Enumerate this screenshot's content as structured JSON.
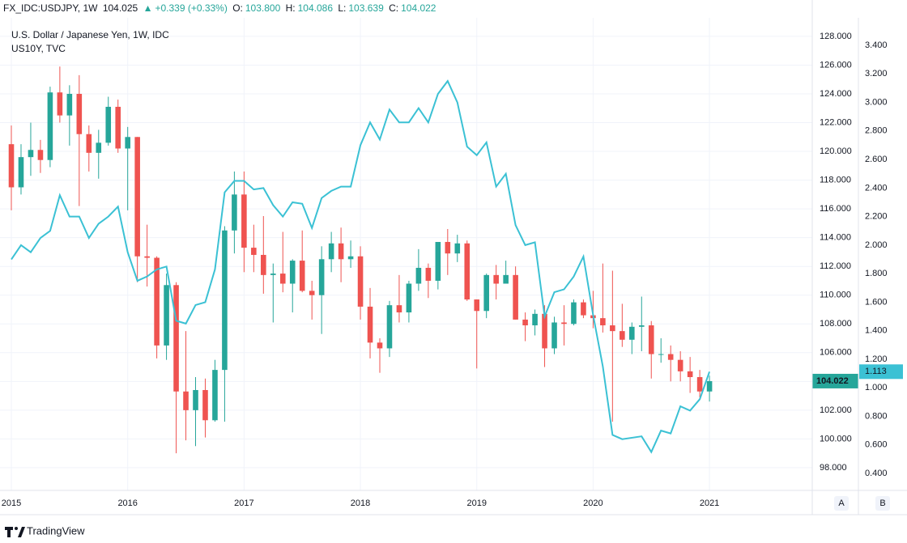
{
  "header": {
    "symbol": "FX_IDC:USDJPY, 1W",
    "last": "104.025",
    "change": "+0.339 (+0.33%)",
    "open_label": "O:",
    "open": "103.800",
    "high_label": "H:",
    "high": "104.086",
    "low_label": "L:",
    "low": "103.639",
    "close_label": "C:",
    "close": "104.022"
  },
  "chart_data": {
    "type": "candlestick",
    "x": [
      0,
      1,
      2,
      3,
      4,
      5,
      6,
      7,
      8,
      9,
      10,
      11,
      12,
      13,
      14,
      15,
      16,
      17,
      18,
      19,
      20,
      21,
      22,
      23,
      24,
      25,
      26,
      27,
      28,
      29,
      30,
      31,
      32,
      33,
      34,
      35,
      36,
      37,
      38,
      39,
      40,
      41,
      42,
      43,
      44,
      45,
      46,
      47,
      48,
      49,
      50,
      51,
      52,
      53,
      54,
      55,
      56,
      57,
      58,
      59,
      60,
      61,
      62,
      63,
      64,
      65,
      66,
      67,
      68,
      69,
      70,
      71,
      72
    ],
    "series": [
      {
        "name": "U.S. Dollar / Japanese Yen, 1W, IDC",
        "up_color": "#26a69a",
        "down_color": "#ef5350",
        "open": [
          120.5,
          117.5,
          119.6,
          120.1,
          119.4,
          124.1,
          122.5,
          124.0,
          121.2,
          119.9,
          120.6,
          123.1,
          120.2,
          121.0,
          112.7,
          112.6,
          106.5,
          110.7,
          103.3,
          102.0,
          103.4,
          101.3,
          104.8,
          114.5,
          117.0,
          113.3,
          112.8,
          111.4,
          111.5,
          110.8,
          112.4,
          110.3,
          110.0,
          112.5,
          113.6,
          112.5,
          112.7,
          109.2,
          106.7,
          106.3,
          109.3,
          108.8,
          110.8,
          111.9,
          111.0,
          113.7,
          112.9,
          113.6,
          109.7,
          108.9,
          111.4,
          110.8,
          111.4,
          108.3,
          107.9,
          108.7,
          106.3,
          108.1,
          108.0,
          109.5,
          108.6,
          108.4,
          107.9,
          107.5,
          106.9,
          107.8,
          107.9,
          105.9,
          105.9,
          105.5,
          104.7,
          104.3,
          103.3
        ],
        "high": [
          121.8,
          120.5,
          122.0,
          120.8,
          124.5,
          125.9,
          124.6,
          125.3,
          121.8,
          121.5,
          123.8,
          123.6,
          121.7,
          121.0,
          114.9,
          112.7,
          111.5,
          110.9,
          107.5,
          104.3,
          104.2,
          105.5,
          114.8,
          118.6,
          118.6,
          114.9,
          115.5,
          112.2,
          114.4,
          112.5,
          114.5,
          111.0,
          113.4,
          114.4,
          114.7,
          113.8,
          113.4,
          110.5,
          107.0,
          109.6,
          111.4,
          111.0,
          113.2,
          112.2,
          113.7,
          114.6,
          114.2,
          113.8,
          109.7,
          111.5,
          112.1,
          112.4,
          112.0,
          108.8,
          109.0,
          109.3,
          108.5,
          109.3,
          109.7,
          109.7,
          110.3,
          112.2,
          111.7,
          109.4,
          108.1,
          109.9,
          108.2,
          107.0,
          106.5,
          106.1,
          105.7,
          104.8,
          104.4
        ],
        "low": [
          115.9,
          117.0,
          118.3,
          118.5,
          118.9,
          122.0,
          120.4,
          116.2,
          118.6,
          118.1,
          120.4,
          119.9,
          115.9,
          110.9,
          110.6,
          105.6,
          105.5,
          99.0,
          99.9,
          99.5,
          100.1,
          101.2,
          101.2,
          112.9,
          111.6,
          111.6,
          110.1,
          108.1,
          110.2,
          108.8,
          110.2,
          108.3,
          107.3,
          111.6,
          110.9,
          111.9,
          108.3,
          105.6,
          104.6,
          105.7,
          108.1,
          108.1,
          110.3,
          109.8,
          110.4,
          111.4,
          112.3,
          109.6,
          104.9,
          108.4,
          109.7,
          110.8,
          108.3,
          106.8,
          107.2,
          105.0,
          105.9,
          106.5,
          107.9,
          108.4,
          107.7,
          107.4,
          101.2,
          106.4,
          105.9,
          106.1,
          104.2,
          105.3,
          104.0,
          104.0,
          103.2,
          102.9,
          102.6
        ],
        "close": [
          117.5,
          119.6,
          120.1,
          119.4,
          124.1,
          122.5,
          124.0,
          121.2,
          119.9,
          120.6,
          123.1,
          120.2,
          121.0,
          112.7,
          112.6,
          106.5,
          110.7,
          103.3,
          102.0,
          103.4,
          101.3,
          104.8,
          114.5,
          117.0,
          113.3,
          112.8,
          111.4,
          111.5,
          110.8,
          112.4,
          110.3,
          110.0,
          112.5,
          113.6,
          112.5,
          112.7,
          109.2,
          106.7,
          106.3,
          109.3,
          108.8,
          110.8,
          111.9,
          111.0,
          113.7,
          112.9,
          113.6,
          109.7,
          108.9,
          111.4,
          110.8,
          111.4,
          108.3,
          107.9,
          108.7,
          106.3,
          108.1,
          108.0,
          109.5,
          108.6,
          108.4,
          107.9,
          107.5,
          106.9,
          107.8,
          107.9,
          105.9,
          105.9,
          105.5,
          104.7,
          104.3,
          103.3,
          104.022
        ],
        "last_label": "104.022"
      },
      {
        "name": "US10Y, TVC",
        "type": "line",
        "color": "#3bc1d4",
        "axis": "y2",
        "values": [
          1.9,
          2.0,
          1.95,
          2.05,
          2.1,
          2.35,
          2.2,
          2.2,
          2.05,
          2.15,
          2.2,
          2.27,
          1.95,
          1.75,
          1.78,
          1.83,
          1.85,
          1.47,
          1.45,
          1.58,
          1.6,
          1.83,
          2.37,
          2.45,
          2.45,
          2.39,
          2.4,
          2.28,
          2.2,
          2.3,
          2.29,
          2.12,
          2.33,
          2.38,
          2.41,
          2.41,
          2.7,
          2.86,
          2.74,
          2.95,
          2.86,
          2.86,
          2.96,
          2.86,
          3.06,
          3.15,
          3.0,
          2.69,
          2.63,
          2.72,
          2.41,
          2.5,
          2.14,
          2.0,
          2.02,
          1.5,
          1.67,
          1.69,
          1.78,
          1.92,
          1.51,
          1.15,
          0.67,
          0.64,
          0.65,
          0.66,
          0.55,
          0.7,
          0.68,
          0.87,
          0.84,
          0.92,
          1.113
        ],
        "last_label": "1.113"
      }
    ],
    "xlim": [
      -1.17,
      82.6
    ],
    "xticks": [
      {
        "value": 0,
        "label": "2015"
      },
      {
        "value": 12,
        "label": "2016"
      },
      {
        "value": 24,
        "label": "2017"
      },
      {
        "value": 36,
        "label": "2018"
      },
      {
        "value": 48,
        "label": "2019"
      },
      {
        "value": 60,
        "label": "2020"
      },
      {
        "value": 72,
        "label": "2021"
      }
    ],
    "ylim": [
      96.42,
      129.29
    ],
    "yticks": [
      {
        "value": 98,
        "label": "98.000"
      },
      {
        "value": 100,
        "label": "100.000"
      },
      {
        "value": 102,
        "label": "102.000"
      },
      {
        "value": 104,
        "label": "104.000"
      },
      {
        "value": 106,
        "label": "106.000"
      },
      {
        "value": 108,
        "label": "108.000"
      },
      {
        "value": 110,
        "label": "110.000"
      },
      {
        "value": 112,
        "label": "112.000"
      },
      {
        "value": 114,
        "label": "114.000"
      },
      {
        "value": 116,
        "label": "116.000"
      },
      {
        "value": 118,
        "label": "118.000"
      },
      {
        "value": 120,
        "label": "120.000"
      },
      {
        "value": 122,
        "label": "122.000"
      },
      {
        "value": 124,
        "label": "124.000"
      },
      {
        "value": 126,
        "label": "126.000"
      },
      {
        "value": 128,
        "label": "128.000"
      }
    ],
    "y2lim": [
      0.281,
      3.593
    ],
    "y2ticks": [
      {
        "value": 0.4,
        "label": "0.400"
      },
      {
        "value": 0.6,
        "label": "0.600"
      },
      {
        "value": 0.8,
        "label": "0.800"
      },
      {
        "value": 1.0,
        "label": "1.000"
      },
      {
        "value": 1.2,
        "label": "1.200"
      },
      {
        "value": 1.4,
        "label": "1.400"
      },
      {
        "value": 1.6,
        "label": "1.600"
      },
      {
        "value": 1.8,
        "label": "1.800"
      },
      {
        "value": 2.0,
        "label": "2.000"
      },
      {
        "value": 2.2,
        "label": "2.200"
      },
      {
        "value": 2.4,
        "label": "2.400"
      },
      {
        "value": 2.6,
        "label": "2.600"
      },
      {
        "value": 2.8,
        "label": "2.800"
      },
      {
        "value": 3.0,
        "label": "3.000"
      },
      {
        "value": 3.2,
        "label": "3.200"
      },
      {
        "value": 3.4,
        "label": "3.400"
      }
    ],
    "grid": true
  },
  "footer": {
    "axis_a": "A",
    "axis_b": "B",
    "brand": "TradingView"
  }
}
